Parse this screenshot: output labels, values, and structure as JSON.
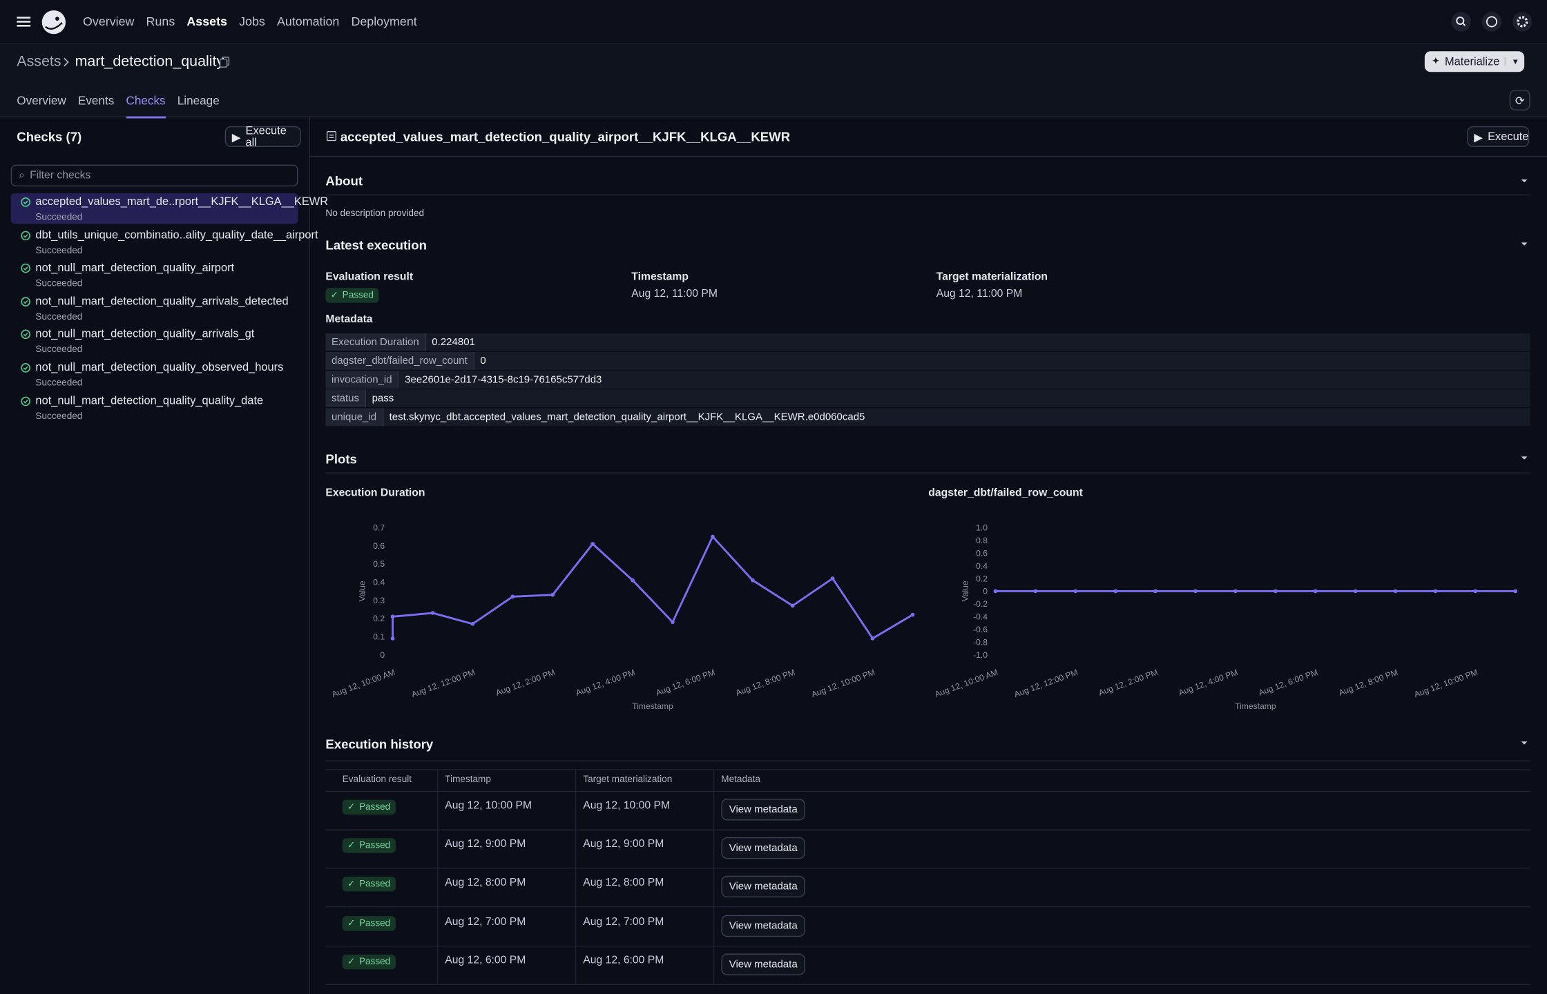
{
  "nav": {
    "links": [
      "Overview",
      "Runs",
      "Assets",
      "Jobs",
      "Automation",
      "Deployment"
    ]
  },
  "breadcrumb": {
    "root": "Assets",
    "current": "mart_detection_quality"
  },
  "materialize": "Materialize",
  "tabs": [
    "Overview",
    "Events",
    "Checks",
    "Lineage"
  ],
  "sidebar": {
    "title": "Checks (7)",
    "execute_all": "Execute all",
    "filter_placeholder": "Filter checks",
    "checks": [
      {
        "name": "accepted_values_mart_de..rport__KJFK__KLGA__KEWR",
        "status": "Succeeded"
      },
      {
        "name": "dbt_utils_unique_combinatio..ality_quality_date__airport",
        "status": "Succeeded"
      },
      {
        "name": "not_null_mart_detection_quality_airport",
        "status": "Succeeded"
      },
      {
        "name": "not_null_mart_detection_quality_arrivals_detected",
        "status": "Succeeded"
      },
      {
        "name": "not_null_mart_detection_quality_arrivals_gt",
        "status": "Succeeded"
      },
      {
        "name": "not_null_mart_detection_quality_observed_hours",
        "status": "Succeeded"
      },
      {
        "name": "not_null_mart_detection_quality_quality_date",
        "status": "Succeeded"
      }
    ]
  },
  "detail": {
    "title": "accepted_values_mart_detection_quality_airport__KJFK__KLGA__KEWR",
    "execute": "Execute",
    "about": {
      "heading": "About",
      "text": "No description provided"
    },
    "latest": {
      "heading": "Latest execution",
      "evaluation_label": "Evaluation result",
      "evaluation": "Passed",
      "timestamp_label": "Timestamp",
      "timestamp": "Aug 12, 11:00 PM",
      "target_label": "Target materialization",
      "target": "Aug 12, 11:00 PM"
    },
    "metadata": {
      "heading": "Metadata",
      "rows": [
        [
          "Execution Duration",
          "0.224801"
        ],
        [
          "dagster_dbt/failed_row_count",
          "0"
        ],
        [
          "invocation_id",
          "3ee2601e-2d17-4315-8c19-76165c577dd3"
        ],
        [
          "status",
          "pass"
        ],
        [
          "unique_id",
          "test.skynyc_dbt.accepted_values_mart_detection_quality_airport__KJFK__KLGA__KEWR.e0d060cad5"
        ]
      ]
    },
    "plots_heading": "Plots",
    "history": {
      "heading": "Execution history",
      "columns": [
        "Evaluation result",
        "Timestamp",
        "Target materialization",
        "Metadata"
      ],
      "rows": [
        {
          "result": "Passed",
          "timestamp": "Aug 12, 10:00 PM",
          "target": "Aug 12, 10:00 PM",
          "action": "View metadata"
        },
        {
          "result": "Passed",
          "timestamp": "Aug 12, 9:00 PM",
          "target": "Aug 12, 9:00 PM",
          "action": "View metadata"
        },
        {
          "result": "Passed",
          "timestamp": "Aug 12, 8:00 PM",
          "target": "Aug 12, 8:00 PM",
          "action": "View metadata"
        },
        {
          "result": "Passed",
          "timestamp": "Aug 12, 7:00 PM",
          "target": "Aug 12, 7:00 PM",
          "action": "View metadata"
        },
        {
          "result": "Passed",
          "timestamp": "Aug 12, 6:00 PM",
          "target": "Aug 12, 6:00 PM",
          "action": "View metadata"
        }
      ]
    }
  },
  "chart_data": [
    {
      "type": "line",
      "title": "Execution Duration",
      "x_label": "Timestamp",
      "y_label": "Value",
      "color": "#7b6ef0",
      "x": [
        10,
        10,
        11,
        12,
        13,
        14,
        15,
        16,
        17,
        18,
        19,
        20,
        21,
        22,
        23
      ],
      "values": [
        0.09,
        0.21,
        0.23,
        0.17,
        0.32,
        0.33,
        0.61,
        0.41,
        0.18,
        0.65,
        0.41,
        0.27,
        0.42,
        0.09,
        0.22
      ],
      "xlim": [
        10,
        23
      ],
      "xticks": [
        {
          "value": 10,
          "label": "Aug 12, 10:00 AM"
        },
        {
          "value": 12,
          "label": "Aug 12, 12:00 PM"
        },
        {
          "value": 14,
          "label": "Aug 12, 2:00 PM"
        },
        {
          "value": 16,
          "label": "Aug 12, 4:00 PM"
        },
        {
          "value": 18,
          "label": "Aug 12, 6:00 PM"
        },
        {
          "value": 20,
          "label": "Aug 12, 8:00 PM"
        },
        {
          "value": 22,
          "label": "Aug 12, 10:00 PM"
        }
      ],
      "ylim": [
        0,
        0.7
      ],
      "yticks": [
        0,
        0.1,
        0.2,
        0.3,
        0.4,
        0.5,
        0.6,
        0.7
      ]
    },
    {
      "type": "line",
      "title": "dagster_dbt/failed_row_count",
      "x_label": "Timestamp",
      "y_label": "Value",
      "color": "#7b6ef0",
      "x": [
        10,
        11,
        12,
        13,
        14,
        15,
        16,
        17,
        18,
        19,
        20,
        21,
        22,
        23
      ],
      "values": [
        0,
        0,
        0,
        0,
        0,
        0,
        0,
        0,
        0,
        0,
        0,
        0,
        0,
        0
      ],
      "xlim": [
        10,
        23
      ],
      "xticks": [
        {
          "value": 10,
          "label": "Aug 12, 10:00 AM"
        },
        {
          "value": 12,
          "label": "Aug 12, 12:00 PM"
        },
        {
          "value": 14,
          "label": "Aug 12, 2:00 PM"
        },
        {
          "value": 16,
          "label": "Aug 12, 4:00 PM"
        },
        {
          "value": 18,
          "label": "Aug 12, 6:00 PM"
        },
        {
          "value": 20,
          "label": "Aug 12, 8:00 PM"
        },
        {
          "value": 22,
          "label": "Aug 12, 10:00 PM"
        }
      ],
      "ylim": [
        -1,
        1
      ],
      "yticks": [
        {
          "value": 1,
          "label": "1.0"
        },
        0.8,
        0.6,
        0.4,
        0.2,
        0,
        -0.2,
        -0.4,
        -0.6,
        -0.8,
        {
          "value": -1,
          "label": "-1.0"
        }
      ]
    }
  ]
}
